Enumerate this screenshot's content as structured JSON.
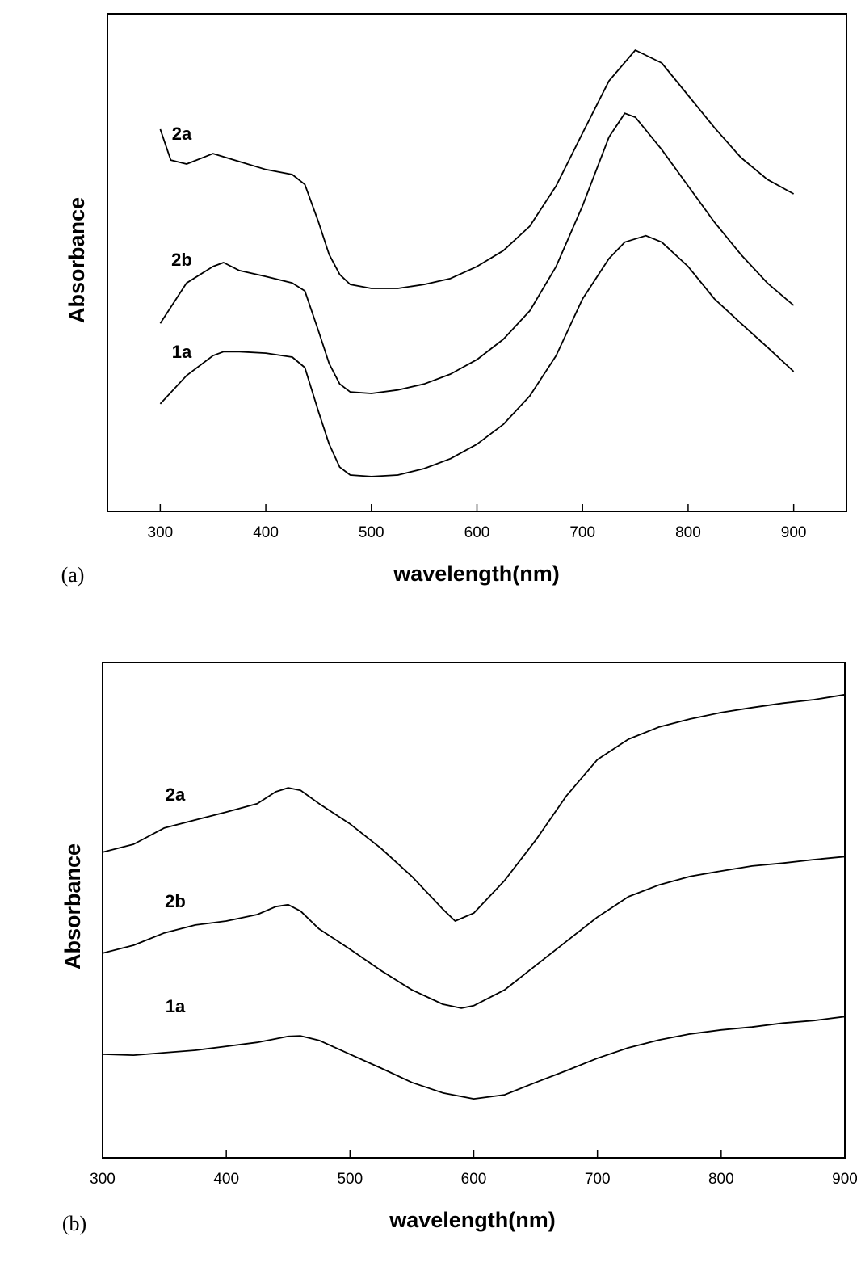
{
  "chart_data": [
    {
      "type": "line",
      "label": "(a)",
      "xlabel": "wavelength(nm)",
      "ylabel": "Absorbance",
      "xlim": [
        250,
        950
      ],
      "xticks": [
        300,
        400,
        500,
        600,
        700,
        800,
        900
      ],
      "ylim": [
        0,
        100
      ],
      "series": [
        {
          "name": "2a",
          "color": "#000000",
          "x": [
            300,
            310,
            325,
            350,
            375,
            400,
            425,
            437,
            450,
            460,
            470,
            480,
            500,
            525,
            550,
            575,
            600,
            625,
            650,
            675,
            700,
            725,
            750,
            775,
            800,
            825,
            850,
            875,
            900
          ],
          "values": [
            76.8,
            70.6,
            69.8,
            71.9,
            70.3,
            68.7,
            67.7,
            65.7,
            58.1,
            51.6,
            47.6,
            45.6,
            44.8,
            44.8,
            45.6,
            46.8,
            49.2,
            52.4,
            57.3,
            65.4,
            76.0,
            86.5,
            92.7,
            90.1,
            83.6,
            77.1,
            71.1,
            66.7,
            63.8
          ]
        },
        {
          "name": "2b",
          "color": "#000000",
          "x": [
            300,
            325,
            350,
            360,
            375,
            400,
            425,
            437,
            450,
            460,
            470,
            480,
            500,
            525,
            550,
            575,
            600,
            625,
            650,
            675,
            700,
            725,
            740,
            750,
            775,
            800,
            825,
            850,
            875,
            900
          ],
          "values": [
            37.8,
            45.9,
            49.2,
            50.0,
            48.4,
            47.2,
            45.9,
            44.3,
            36.2,
            29.7,
            25.6,
            24.0,
            23.7,
            24.4,
            25.6,
            27.6,
            30.5,
            34.6,
            40.3,
            49.2,
            61.4,
            75.2,
            80.0,
            79.2,
            72.7,
            65.4,
            58.1,
            51.6,
            45.9,
            41.4
          ]
        },
        {
          "name": "1a",
          "color": "#000000",
          "x": [
            300,
            325,
            350,
            360,
            375,
            400,
            425,
            437,
            450,
            460,
            470,
            480,
            500,
            525,
            550,
            575,
            600,
            625,
            650,
            675,
            700,
            725,
            740,
            760,
            775,
            800,
            825,
            850,
            875,
            900
          ],
          "values": [
            21.6,
            27.3,
            31.3,
            32.1,
            32.1,
            31.8,
            31.0,
            28.9,
            20.0,
            13.5,
            8.9,
            7.3,
            7.0,
            7.3,
            8.6,
            10.6,
            13.5,
            17.5,
            23.2,
            31.3,
            42.7,
            50.8,
            54.1,
            55.4,
            54.1,
            49.2,
            42.7,
            37.8,
            33.0,
            28.1
          ]
        }
      ]
    },
    {
      "type": "line",
      "label": "(b)",
      "xlabel": "wavelength(nm)",
      "ylabel": "Absorbance",
      "xlim": [
        300,
        900
      ],
      "xticks": [
        300,
        400,
        500,
        600,
        700,
        800,
        900
      ],
      "ylim": [
        0,
        100
      ],
      "series": [
        {
          "name": "2a",
          "color": "#000000",
          "x": [
            300,
            325,
            350,
            375,
            400,
            425,
            440,
            450,
            460,
            475,
            500,
            525,
            550,
            575,
            585,
            600,
            625,
            650,
            675,
            700,
            725,
            750,
            775,
            800,
            825,
            850,
            875,
            900
          ],
          "values": [
            61.7,
            63.3,
            66.6,
            68.2,
            69.8,
            71.5,
            73.9,
            74.7,
            74.2,
            71.5,
            67.4,
            62.5,
            56.8,
            50.2,
            47.8,
            49.4,
            56.0,
            64.1,
            73.1,
            80.4,
            84.5,
            87.0,
            88.6,
            89.9,
            90.9,
            91.8,
            92.5,
            93.5
          ]
        },
        {
          "name": "2b",
          "color": "#000000",
          "x": [
            300,
            325,
            350,
            375,
            400,
            425,
            440,
            450,
            460,
            475,
            500,
            525,
            550,
            575,
            590,
            600,
            625,
            650,
            675,
            700,
            725,
            750,
            775,
            800,
            825,
            850,
            875,
            900
          ],
          "values": [
            41.3,
            42.9,
            45.4,
            47.0,
            47.8,
            49.1,
            50.7,
            51.1,
            49.8,
            46.2,
            42.1,
            37.8,
            33.9,
            31.0,
            30.2,
            30.7,
            33.9,
            38.8,
            43.7,
            48.6,
            52.7,
            55.1,
            56.8,
            57.9,
            58.9,
            59.5,
            60.2,
            60.8
          ]
        },
        {
          "name": "1a",
          "color": "#000000",
          "x": [
            300,
            325,
            350,
            375,
            400,
            425,
            450,
            460,
            475,
            500,
            525,
            550,
            575,
            600,
            625,
            650,
            675,
            700,
            725,
            750,
            775,
            800,
            825,
            850,
            875,
            900
          ],
          "values": [
            20.9,
            20.7,
            21.2,
            21.7,
            22.5,
            23.3,
            24.5,
            24.6,
            23.7,
            20.9,
            18.1,
            15.2,
            13.1,
            11.9,
            12.7,
            15.2,
            17.6,
            20.1,
            22.2,
            23.8,
            25.0,
            25.8,
            26.4,
            27.2,
            27.7,
            28.5
          ]
        }
      ]
    }
  ]
}
